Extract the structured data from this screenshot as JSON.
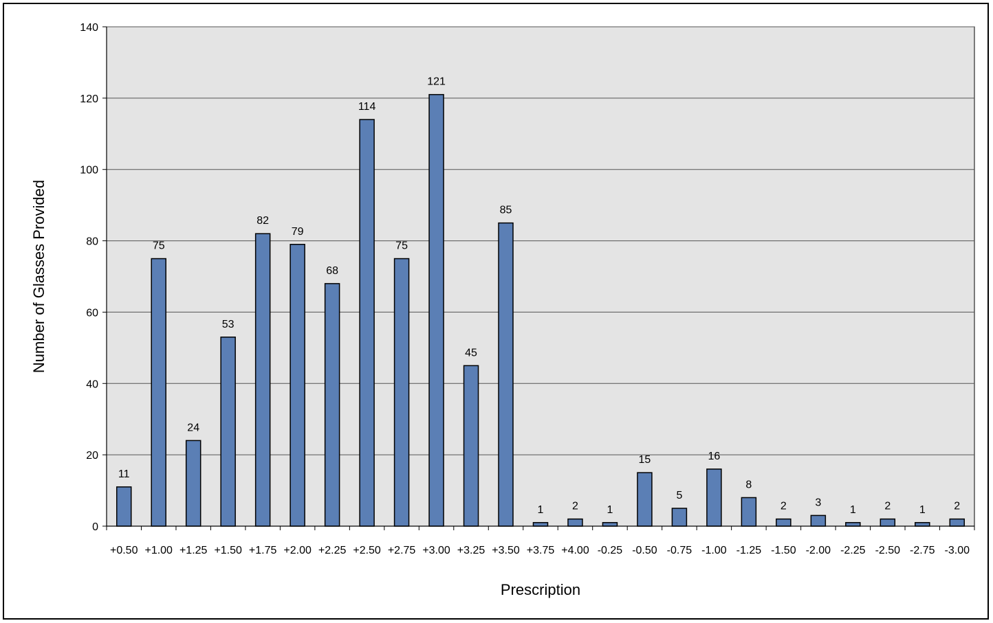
{
  "chart_data": {
    "type": "bar",
    "title": "",
    "xlabel": "Prescription",
    "ylabel": "Number of Glasses Provided",
    "ylim": [
      0,
      140
    ],
    "ytick_step": 20,
    "grid": true,
    "legend": "none",
    "categories": [
      "+0.50",
      "+1.00",
      "+1.25",
      "+1.50",
      "+1.75",
      "+2.00",
      "+2.25",
      "+2.50",
      "+2.75",
      "+3.00",
      "+3.25",
      "+3.50",
      "+3.75",
      "+4.00",
      "-0.25",
      "-0.50",
      "-0.75",
      "-1.00",
      "-1.25",
      "-1.50",
      "-2.00",
      "-2.25",
      "-2.50",
      "-2.75",
      "-3.00"
    ],
    "values": [
      11,
      75,
      24,
      53,
      82,
      79,
      68,
      114,
      75,
      121,
      45,
      85,
      1,
      2,
      1,
      15,
      5,
      16,
      8,
      2,
      3,
      1,
      2,
      1,
      2
    ],
    "colors": {
      "bar": "#5b7fb5",
      "plot_bg": "#e4e4e4",
      "grid": "#555555"
    }
  }
}
